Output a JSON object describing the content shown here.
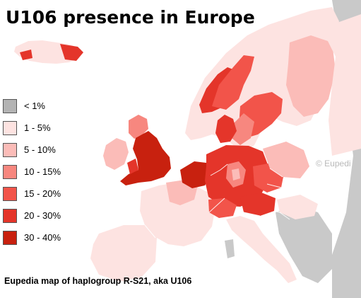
{
  "title": "U106 presence in Europe",
  "legend": [
    {
      "label": "< 1%",
      "color": "#b3b3b3"
    },
    {
      "label": "1  -  5%",
      "color": "#fde3e1"
    },
    {
      "label": "5  -  10%",
      "color": "#fbbcb8"
    },
    {
      "label": "10  -  15%",
      "color": "#f7877f"
    },
    {
      "label": "15  -  20%",
      "color": "#f2544a"
    },
    {
      "label": "20  -  30%",
      "color": "#e4352a"
    },
    {
      "label": "30  -  40%",
      "color": "#c8210f"
    }
  ],
  "caption": "Eupedia map of haplogroup R-S21, aka U106",
  "watermark": "© Eupedi",
  "colors": {
    "sea": "#ffffff",
    "no_data": "#c9c9c9",
    "borders": "#ffffff"
  }
}
